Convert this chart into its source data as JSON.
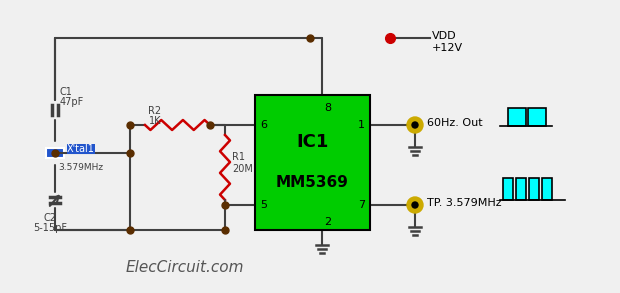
{
  "bg_color": "#f0f0f0",
  "wire_color": "#404040",
  "ic_color": "#00cc00",
  "ic_label1": "IC1",
  "ic_label2": "MM5369",
  "vdd_color": "#cc0000",
  "node_color": "#5a2d00",
  "resistor_color_r2": "#cc0000",
  "resistor_color_r1": "#cc0000",
  "crystal_color": "#0000cc",
  "cap_color": "#404040",
  "signal_color": "#00ffff",
  "signal_outline": "#000000",
  "probe_outer": "#ccaa00",
  "probe_inner": "#000000",
  "text_color": "#404040",
  "ground_color": "#404040",
  "watermark": "ElecCircuit.com"
}
